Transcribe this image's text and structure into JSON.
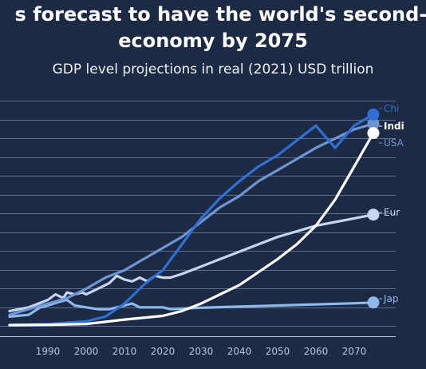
{
  "header": {
    "title_line1": "s forecast to have the world's second-l",
    "title_line2": "economy by 2075",
    "subtitle": "GDP level projections in real (2021) USD trillion"
  },
  "colors": {
    "background": "#1c2a44",
    "China": "#2f6fd6",
    "India": "#ffffff",
    "USA": "#6f95d4",
    "Europe": "#c6d6ee",
    "Japan": "#8fb8ea",
    "grid": "#5a6f95"
  },
  "chart_data": {
    "type": "line",
    "xlim": [
      1980,
      2080
    ],
    "x_ticks": [
      1990,
      2000,
      2010,
      2020,
      2030,
      2040,
      2050,
      2060,
      2070
    ],
    "grid": true,
    "legend": "end-of-line labels, right",
    "series": [
      {
        "name": "China",
        "label": "Chi",
        "color": "#2f6fd6",
        "points": [
          [
            1980,
            0.3
          ],
          [
            1990,
            0.5
          ],
          [
            2000,
            1.2
          ],
          [
            2005,
            2.5
          ],
          [
            2010,
            6
          ],
          [
            2012,
            8
          ],
          [
            2015,
            11
          ],
          [
            2018,
            13.5
          ],
          [
            2020,
            15
          ],
          [
            2025,
            22
          ],
          [
            2030,
            29
          ],
          [
            2035,
            34.5
          ],
          [
            2040,
            39
          ],
          [
            2045,
            43
          ],
          [
            2050,
            46
          ],
          [
            2055,
            50
          ],
          [
            2060,
            54
          ],
          [
            2065,
            48
          ],
          [
            2070,
            54
          ],
          [
            2075,
            57
          ]
        ]
      },
      {
        "name": "India",
        "label": "Indi",
        "color": "#ffffff",
        "points": [
          [
            1980,
            0.2
          ],
          [
            1990,
            0.3
          ],
          [
            2000,
            0.5
          ],
          [
            2010,
            1.7
          ],
          [
            2020,
            2.7
          ],
          [
            2025,
            4
          ],
          [
            2030,
            6
          ],
          [
            2035,
            8.5
          ],
          [
            2040,
            11
          ],
          [
            2045,
            14.5
          ],
          [
            2050,
            18
          ],
          [
            2055,
            22
          ],
          [
            2060,
            27
          ],
          [
            2065,
            34
          ],
          [
            2070,
            43
          ],
          [
            2075,
            52
          ]
        ]
      },
      {
        "name": "USA",
        "label": "USA",
        "color": "#6f95d4",
        "points": [
          [
            1980,
            3
          ],
          [
            1985,
            4.5
          ],
          [
            1990,
            6
          ],
          [
            1995,
            7.5
          ],
          [
            2000,
            10
          ],
          [
            2005,
            13
          ],
          [
            2010,
            15
          ],
          [
            2015,
            18
          ],
          [
            2020,
            21
          ],
          [
            2025,
            24
          ],
          [
            2030,
            28
          ],
          [
            2035,
            32
          ],
          [
            2040,
            35
          ],
          [
            2045,
            39
          ],
          [
            2050,
            42
          ],
          [
            2055,
            45
          ],
          [
            2060,
            48
          ],
          [
            2065,
            50.5
          ],
          [
            2070,
            53
          ],
          [
            2075,
            54.5
          ]
        ]
      },
      {
        "name": "Euro Area",
        "label": "Eur",
        "color": "#c6d6ee",
        "points": [
          [
            1980,
            4
          ],
          [
            1985,
            5
          ],
          [
            1990,
            7
          ],
          [
            1992,
            8.5
          ],
          [
            1994,
            7.5
          ],
          [
            1995,
            9
          ],
          [
            1997,
            8.5
          ],
          [
            1999,
            9
          ],
          [
            2000,
            8.5
          ],
          [
            2002,
            9.5
          ],
          [
            2004,
            10.5
          ],
          [
            2006,
            11.5
          ],
          [
            2008,
            13.5
          ],
          [
            2010,
            12.5
          ],
          [
            2012,
            12
          ],
          [
            2014,
            13
          ],
          [
            2016,
            12
          ],
          [
            2018,
            13.5
          ],
          [
            2020,
            13
          ],
          [
            2022,
            13
          ],
          [
            2025,
            14
          ],
          [
            2030,
            16
          ],
          [
            2035,
            18
          ],
          [
            2040,
            20
          ],
          [
            2045,
            22
          ],
          [
            2050,
            24
          ],
          [
            2055,
            25.5
          ],
          [
            2060,
            27
          ],
          [
            2065,
            28
          ],
          [
            2070,
            29
          ],
          [
            2075,
            30
          ]
        ]
      },
      {
        "name": "Japan",
        "label": "Jap",
        "color": "#8fb8ea",
        "points": [
          [
            1980,
            2.5
          ],
          [
            1985,
            3
          ],
          [
            1988,
            5
          ],
          [
            1990,
            5.5
          ],
          [
            1993,
            6.5
          ],
          [
            1995,
            7
          ],
          [
            1997,
            5.5
          ],
          [
            2000,
            5
          ],
          [
            2003,
            4.5
          ],
          [
            2006,
            4.5
          ],
          [
            2008,
            5
          ],
          [
            2010,
            5.5
          ],
          [
            2012,
            6
          ],
          [
            2014,
            5
          ],
          [
            2016,
            5
          ],
          [
            2018,
            5
          ],
          [
            2020,
            5
          ],
          [
            2022,
            4.5
          ],
          [
            2030,
            4.9
          ],
          [
            2040,
            5.2
          ],
          [
            2050,
            5.5
          ],
          [
            2060,
            5.8
          ],
          [
            2070,
            6.1
          ],
          [
            2075,
            6.3
          ]
        ]
      }
    ]
  }
}
